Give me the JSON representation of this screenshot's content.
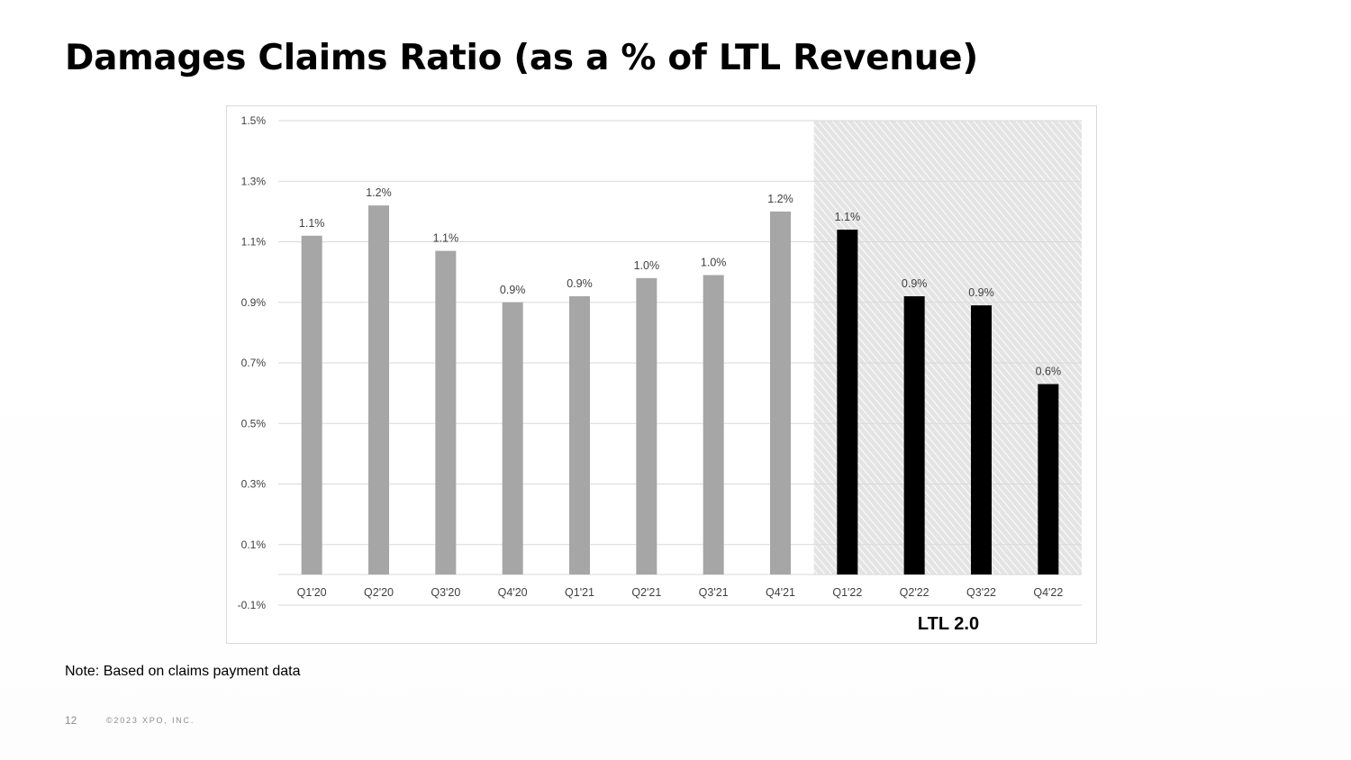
{
  "slide": {
    "title": "Damages Claims Ratio (as a % of LTL Revenue)",
    "note": "Note: Based on claims payment data",
    "page_number": "12",
    "copyright": "©2023 XPO, INC."
  },
  "colors": {
    "bar_gray": "#a6a6a6",
    "bar_black": "#000000",
    "gridline": "#d9d9d9",
    "shade_bg": "#e4e4e4",
    "shade_hatch": "#ffffff",
    "label_text": "#404040"
  },
  "chart_data": {
    "type": "bar",
    "title": "Damages Claims Ratio (as a % of LTL Revenue)",
    "xlabel": "",
    "ylabel": "",
    "ylim": [
      -0.1,
      1.5
    ],
    "yticks": [
      "1.5%",
      "1.3%",
      "1.1%",
      "0.9%",
      "0.7%",
      "0.5%",
      "0.3%",
      "0.1%",
      "-0.1%"
    ],
    "ytick_values": [
      1.5,
      1.3,
      1.1,
      0.9,
      0.7,
      0.5,
      0.3,
      0.1,
      -0.1
    ],
    "grid": true,
    "categories": [
      "Q1'20",
      "Q2'20",
      "Q3'20",
      "Q4'20",
      "Q1'21",
      "Q2'21",
      "Q3'21",
      "Q4'21",
      "Q1'22",
      "Q2'22",
      "Q3'22",
      "Q4'22"
    ],
    "values": [
      1.12,
      1.22,
      1.07,
      0.9,
      0.92,
      0.98,
      0.99,
      1.2,
      1.14,
      0.92,
      0.89,
      0.63
    ],
    "data_labels": [
      "1.1%",
      "1.2%",
      "1.1%",
      "0.9%",
      "0.9%",
      "1.0%",
      "1.0%",
      "1.2%",
      "1.1%",
      "0.9%",
      "0.9%",
      "0.6%"
    ],
    "highlight_start_index": 8,
    "highlight_label": "LTL 2.0"
  }
}
